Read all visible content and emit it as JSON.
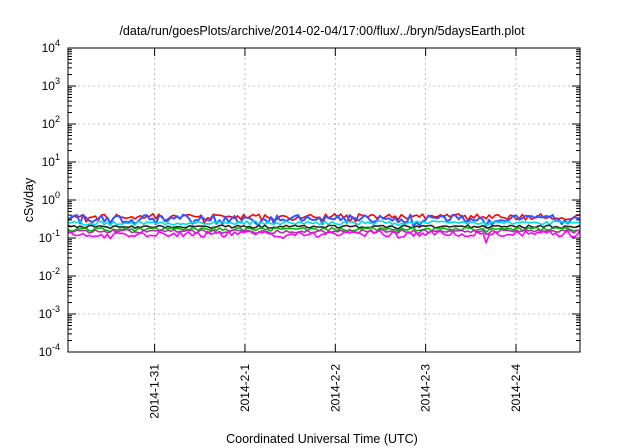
{
  "chart_data": {
    "type": "line",
    "title": "/data/run/goesPlots/archive/2014-02-04/17:00/flux/../bryn/5daysEarth.plot",
    "xlabel": "Coordinated Universal Time (UTC)",
    "ylabel": "cSv/day",
    "y_scale": "log",
    "ylim": [
      0.0001,
      10000
    ],
    "xlim": [
      "2014-01-30T01:00",
      "2014-02-04T17:00"
    ],
    "grid": true,
    "legend": "none",
    "y_ticks": [
      {
        "base": "10",
        "exp": "-4",
        "value": 0.0001
      },
      {
        "base": "10",
        "exp": "-3",
        "value": 0.001
      },
      {
        "base": "10",
        "exp": "-2",
        "value": 0.01
      },
      {
        "base": "10",
        "exp": "-1",
        "value": 0.1
      },
      {
        "base": "10",
        "exp": "0",
        "value": 1
      },
      {
        "base": "10",
        "exp": "1",
        "value": 10
      },
      {
        "base": "10",
        "exp": "2",
        "value": 100
      },
      {
        "base": "10",
        "exp": "3",
        "value": 1000
      },
      {
        "base": "10",
        "exp": "4",
        "value": 10000
      }
    ],
    "x_ticks": [
      {
        "label": "2014-1-31",
        "value": "2014-01-31T00:00"
      },
      {
        "label": "2014-2-1",
        "value": "2014-02-01T00:00"
      },
      {
        "label": "2014-2-2",
        "value": "2014-02-02T00:00"
      },
      {
        "label": "2014-2-3",
        "value": "2014-02-03T00:00"
      },
      {
        "label": "2014-2-4",
        "value": "2014-02-04T00:00"
      }
    ],
    "series": [
      {
        "color": "#ff0000",
        "base": 0.38,
        "spread": 0.09,
        "dips": 0.25
      },
      {
        "color": "#3355ff",
        "base": 0.34,
        "spread": 0.12,
        "dips": 0.35
      },
      {
        "color": "#00dddd",
        "base": 0.25,
        "spread": 0.05,
        "dips": 0.15
      },
      {
        "color": "#222222",
        "base": 0.2,
        "spread": 0.03,
        "dips": 0.1
      },
      {
        "color": "#00bb00",
        "base": 0.17,
        "spread": 0.03,
        "dips": 0.12
      },
      {
        "color": "#aa33aa",
        "base": 0.15,
        "spread": 0.03,
        "dips": 0.15
      },
      {
        "color": "#ff00ff",
        "base": 0.13,
        "spread": 0.04,
        "dips": 0.4
      }
    ]
  }
}
